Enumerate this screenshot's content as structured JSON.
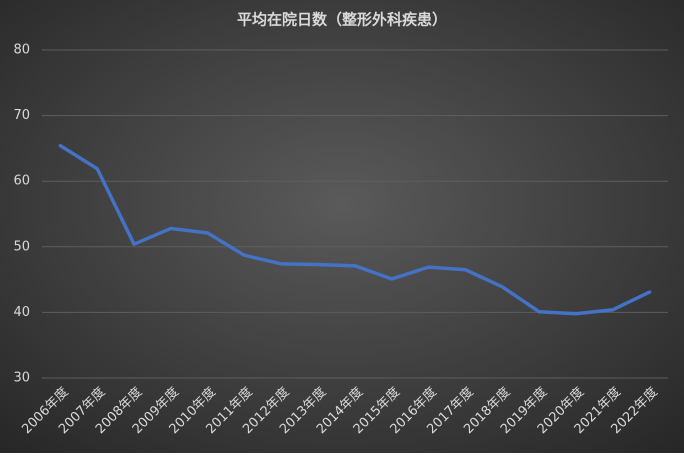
{
  "chart_data": {
    "type": "line",
    "title": "平均在院日数（整形外科疾患）",
    "categories": [
      "2006年度",
      "2007年度",
      "2008年度",
      "2009年度",
      "2010年度",
      "2011年度",
      "2012年度",
      "2013年度",
      "2014年度",
      "2015年度",
      "2016年度",
      "2017年度",
      "2018年度",
      "2019年度",
      "2020年度",
      "2021年度",
      "2022年度"
    ],
    "series": [
      {
        "name": "平均在院日数",
        "color": "#4472c4",
        "values": [
          65.4,
          61.9,
          50.4,
          52.8,
          52.1,
          48.7,
          47.4,
          47.3,
          47.1,
          45.1,
          46.9,
          46.5,
          43.9,
          40.1,
          39.8,
          40.4,
          43.1
        ]
      }
    ],
    "ylim": [
      30,
      80
    ],
    "yticks": [
      30,
      40,
      50,
      60,
      70,
      80
    ],
    "grid": true
  }
}
